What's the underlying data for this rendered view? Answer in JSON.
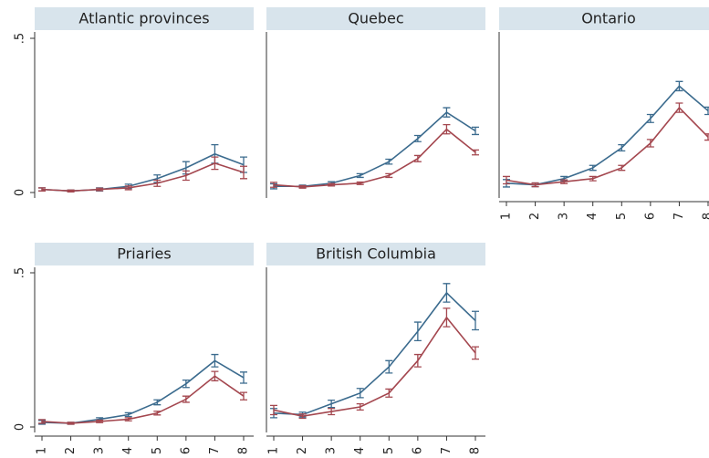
{
  "chart_data": [
    {
      "type": "line",
      "title": "Atlantic provinces",
      "x": [
        1,
        2,
        3,
        4,
        5,
        6,
        7,
        8
      ],
      "xlim": [
        1,
        8
      ],
      "ylim": [
        0,
        0.5
      ],
      "yticks": [
        0,
        {
          "value": 0.5,
          "label": ".5"
        }
      ],
      "series": [
        {
          "color": "#3b6b8e",
          "values": [
            0.01,
            0.005,
            0.01,
            0.02,
            0.045,
            0.08,
            0.125,
            0.09
          ],
          "errors": [
            0.005,
            0.003,
            0.005,
            0.007,
            0.012,
            0.02,
            0.03,
            0.025
          ]
        },
        {
          "color": "#a4474f",
          "values": [
            0.01,
            0.005,
            0.01,
            0.015,
            0.03,
            0.055,
            0.095,
            0.065
          ],
          "errors": [
            0.005,
            0.003,
            0.004,
            0.006,
            0.01,
            0.015,
            0.02,
            0.02
          ]
        }
      ]
    },
    {
      "type": "line",
      "title": "Quebec",
      "x": [
        1,
        2,
        3,
        4,
        5,
        6,
        7,
        8
      ],
      "xlim": [
        1,
        8
      ],
      "ylim": [
        0,
        0.5
      ],
      "series": [
        {
          "color": "#3b6b8e",
          "values": [
            0.02,
            0.02,
            0.03,
            0.055,
            0.1,
            0.175,
            0.26,
            0.2
          ],
          "errors": [
            0.008,
            0.004,
            0.005,
            0.006,
            0.008,
            0.01,
            0.015,
            0.012
          ]
        },
        {
          "color": "#a4474f",
          "values": [
            0.025,
            0.018,
            0.025,
            0.03,
            0.055,
            0.11,
            0.205,
            0.13
          ],
          "errors": [
            0.008,
            0.004,
            0.004,
            0.004,
            0.006,
            0.01,
            0.015,
            0.008
          ]
        }
      ]
    },
    {
      "type": "line",
      "title": "Ontario",
      "x": [
        1,
        2,
        3,
        4,
        5,
        6,
        7,
        8
      ],
      "xlim": [
        1,
        8
      ],
      "ylim": [
        0,
        0.5
      ],
      "xticks": [
        1,
        2,
        3,
        4,
        5,
        6,
        7,
        8
      ],
      "series": [
        {
          "color": "#3b6b8e",
          "values": [
            0.03,
            0.025,
            0.045,
            0.08,
            0.145,
            0.24,
            0.345,
            0.265
          ],
          "errors": [
            0.012,
            0.006,
            0.007,
            0.008,
            0.01,
            0.013,
            0.015,
            0.012
          ]
        },
        {
          "color": "#a4474f",
          "values": [
            0.04,
            0.025,
            0.035,
            0.045,
            0.08,
            0.16,
            0.275,
            0.18
          ],
          "errors": [
            0.012,
            0.006,
            0.006,
            0.007,
            0.008,
            0.012,
            0.015,
            0.01
          ]
        }
      ]
    },
    {
      "type": "line",
      "title": "Priaries",
      "x": [
        1,
        2,
        3,
        4,
        5,
        6,
        7,
        8
      ],
      "xlim": [
        1,
        8
      ],
      "ylim": [
        0,
        0.5
      ],
      "yticks": [
        0,
        {
          "value": 0.5,
          "label": ".5"
        }
      ],
      "xticks": [
        1,
        2,
        3,
        4,
        5,
        6,
        7,
        8
      ],
      "series": [
        {
          "color": "#3b6b8e",
          "values": [
            0.015,
            0.012,
            0.025,
            0.04,
            0.08,
            0.14,
            0.215,
            0.16
          ],
          "errors": [
            0.006,
            0.003,
            0.005,
            0.006,
            0.008,
            0.012,
            0.02,
            0.018
          ]
        },
        {
          "color": "#a4474f",
          "values": [
            0.018,
            0.012,
            0.018,
            0.025,
            0.045,
            0.09,
            0.165,
            0.1
          ],
          "errors": [
            0.006,
            0.003,
            0.004,
            0.005,
            0.006,
            0.01,
            0.015,
            0.012
          ]
        }
      ]
    },
    {
      "type": "line",
      "title": "British Columbia",
      "x": [
        1,
        2,
        3,
        4,
        5,
        6,
        7,
        8
      ],
      "xlim": [
        1,
        8
      ],
      "ylim": [
        0,
        0.5
      ],
      "xticks": [
        1,
        2,
        3,
        4,
        5,
        6,
        7,
        8
      ],
      "series": [
        {
          "color": "#3b6b8e",
          "values": [
            0.045,
            0.04,
            0.075,
            0.11,
            0.195,
            0.31,
            0.435,
            0.345
          ],
          "errors": [
            0.015,
            0.008,
            0.012,
            0.015,
            0.02,
            0.03,
            0.03,
            0.03
          ]
        },
        {
          "color": "#a4474f",
          "values": [
            0.055,
            0.035,
            0.05,
            0.065,
            0.11,
            0.215,
            0.355,
            0.24
          ],
          "errors": [
            0.015,
            0.007,
            0.01,
            0.01,
            0.013,
            0.02,
            0.03,
            0.02
          ]
        }
      ]
    }
  ]
}
